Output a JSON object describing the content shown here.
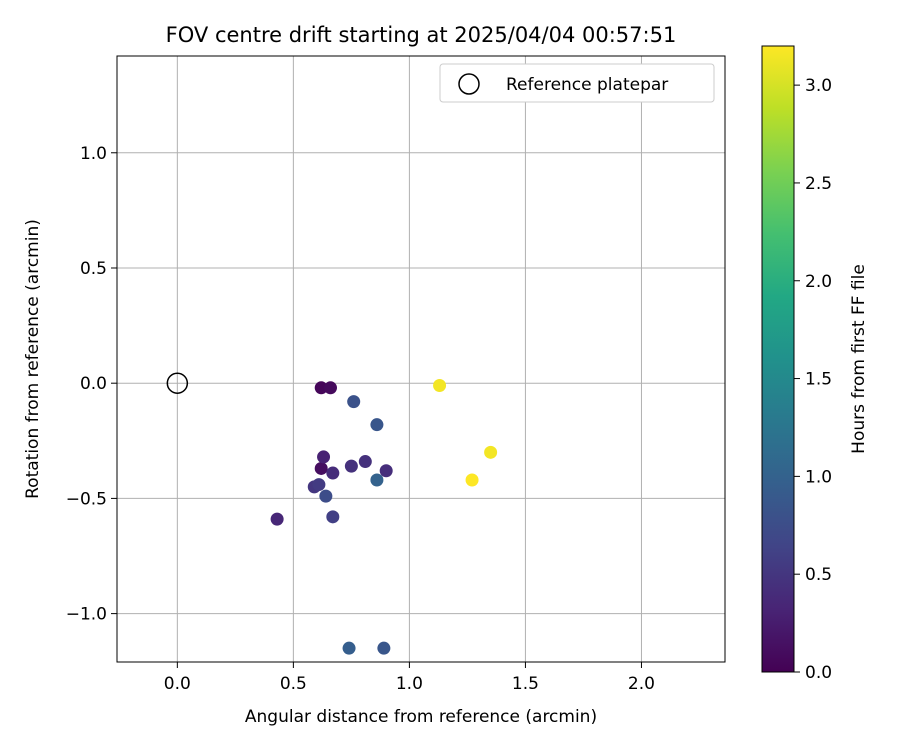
{
  "chart_data": {
    "type": "scatter",
    "title": "FOV centre drift starting at 2025/04/04 00:57:51",
    "xlabel": "Angular distance from reference (arcmin)",
    "ylabel": "Rotation from reference (arcmin)",
    "xlim": [
      -0.26,
      2.36
    ],
    "ylim": [
      -1.21,
      1.42
    ],
    "xticks": [
      0.0,
      0.5,
      1.0,
      1.5,
      2.0
    ],
    "xtick_labels": [
      "0.0",
      "0.5",
      "1.0",
      "1.5",
      "2.0"
    ],
    "yticks": [
      -1.0,
      -0.5,
      0.0,
      0.5,
      1.0
    ],
    "ytick_labels": [
      "−1.0",
      "−0.5",
      "0.0",
      "0.5",
      "1.0"
    ],
    "grid": true,
    "legend": {
      "position": "top-right",
      "entries": [
        {
          "label": "Reference platepar",
          "marker": "open-circle"
        }
      ]
    },
    "reference_point": {
      "x": 0.0,
      "y": 0.0,
      "label": "Reference platepar"
    },
    "colorbar": {
      "label": "Hours from first FF file",
      "range": [
        0.0,
        3.2
      ],
      "ticks": [
        0.0,
        0.5,
        1.0,
        1.5,
        2.0,
        2.5,
        3.0
      ],
      "tick_labels": [
        "0.0",
        "0.5",
        "1.0",
        "1.5",
        "2.0",
        "2.5",
        "3.0"
      ],
      "colormap": "viridis"
    },
    "points": [
      {
        "x": 0.62,
        "y": -0.02,
        "hours": 0.05
      },
      {
        "x": 0.66,
        "y": -0.02,
        "hours": 0.08
      },
      {
        "x": 0.62,
        "y": -0.37,
        "hours": 0.12
      },
      {
        "x": 0.63,
        "y": -0.32,
        "hours": 0.3
      },
      {
        "x": 0.67,
        "y": -0.39,
        "hours": 0.4
      },
      {
        "x": 0.75,
        "y": -0.36,
        "hours": 0.45
      },
      {
        "x": 0.81,
        "y": -0.34,
        "hours": 0.45
      },
      {
        "x": 0.9,
        "y": -0.38,
        "hours": 0.42
      },
      {
        "x": 0.43,
        "y": -0.59,
        "hours": 0.35
      },
      {
        "x": 0.59,
        "y": -0.45,
        "hours": 0.5
      },
      {
        "x": 0.61,
        "y": -0.44,
        "hours": 0.55
      },
      {
        "x": 0.64,
        "y": -0.49,
        "hours": 0.75
      },
      {
        "x": 0.67,
        "y": -0.58,
        "hours": 0.6
      },
      {
        "x": 0.76,
        "y": -0.08,
        "hours": 0.8
      },
      {
        "x": 0.86,
        "y": -0.18,
        "hours": 0.85
      },
      {
        "x": 0.86,
        "y": -0.42,
        "hours": 1.0
      },
      {
        "x": 0.74,
        "y": -1.15,
        "hours": 0.95
      },
      {
        "x": 0.89,
        "y": -1.15,
        "hours": 0.85
      },
      {
        "x": 1.13,
        "y": -0.01,
        "hours": 3.15
      },
      {
        "x": 1.35,
        "y": -0.3,
        "hours": 3.15
      },
      {
        "x": 1.27,
        "y": -0.42,
        "hours": 3.2
      }
    ]
  }
}
